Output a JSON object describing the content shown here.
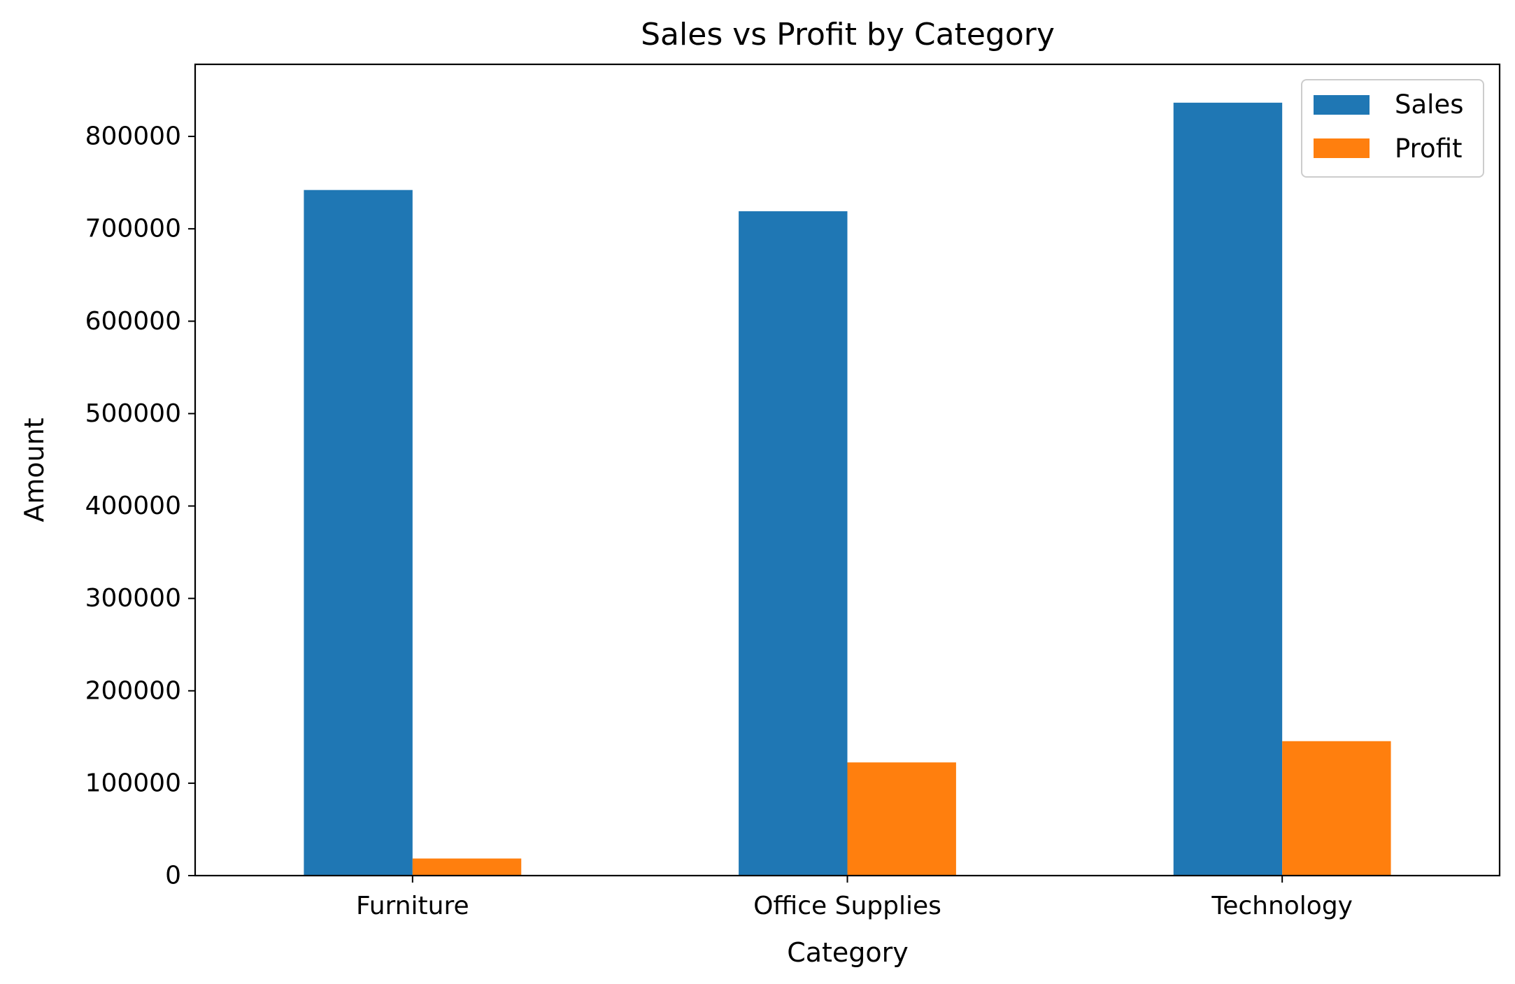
{
  "chart_data": {
    "type": "bar",
    "title": "Sales vs Profit by Category",
    "xlabel": "Category",
    "ylabel": "Amount",
    "categories": [
      "Furniture",
      "Office Supplies",
      "Technology"
    ],
    "series": [
      {
        "name": "Sales",
        "color": "#1f77b4",
        "values": [
          742000,
          719000,
          836500
        ]
      },
      {
        "name": "Profit",
        "color": "#ff7f0e",
        "values": [
          18500,
          122500,
          145500
        ]
      }
    ],
    "ylim": [
      0,
      878000
    ],
    "yticks": [
      0,
      100000,
      200000,
      300000,
      400000,
      500000,
      600000,
      700000,
      800000
    ],
    "ytick_labels": [
      "0",
      "100000",
      "200000",
      "300000",
      "400000",
      "500000",
      "600000",
      "700000",
      "800000"
    ],
    "grid": false,
    "legend_position": "top-right"
  }
}
